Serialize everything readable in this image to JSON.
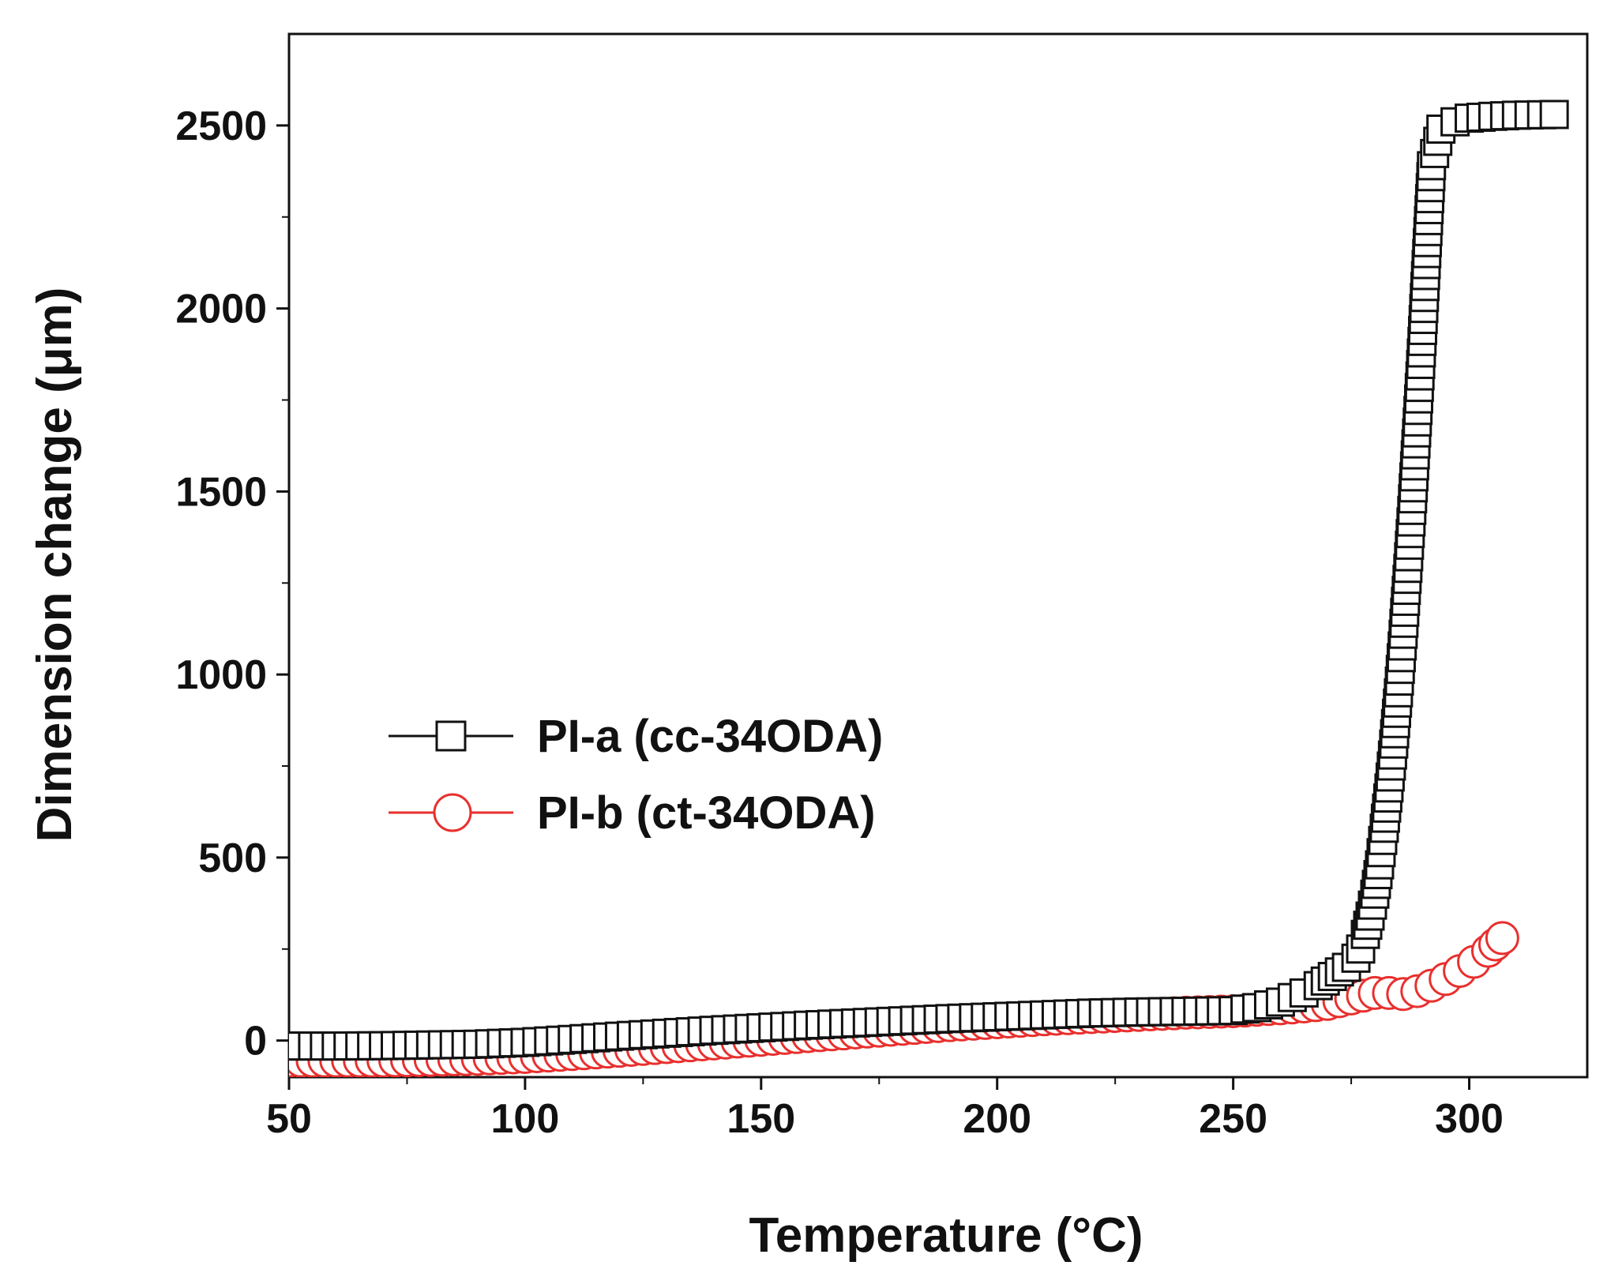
{
  "chart_data": {
    "type": "line",
    "title": "",
    "xlabel": "Temperature (°C)",
    "ylabel": "Dimension change (μm)",
    "xlim": [
      50,
      325
    ],
    "ylim": [
      -100,
      2750
    ],
    "xticks": [
      50,
      100,
      150,
      200,
      250,
      300
    ],
    "xtick_labels": [
      "50",
      "100",
      "150",
      "200",
      "250",
      "300"
    ],
    "yticks": [
      0,
      500,
      1000,
      1500,
      2000,
      2500
    ],
    "ytick_labels": [
      "0",
      "500",
      "1000",
      "1500",
      "2000",
      "2500"
    ],
    "grid": false,
    "legend": "center-left",
    "series": [
      {
        "name": "PI-a (cc-34ODA)",
        "color": "#111111",
        "marker": "square",
        "x": [
          50,
          60,
          70,
          80,
          90,
          100,
          110,
          120,
          130,
          140,
          150,
          160,
          170,
          180,
          190,
          200,
          210,
          220,
          230,
          240,
          250,
          255,
          260,
          265,
          268,
          271,
          274,
          276,
          277,
          278,
          279,
          280,
          281,
          282,
          283,
          284,
          285,
          286,
          287,
          288,
          289,
          290,
          291,
          292,
          294,
          297,
          300,
          305,
          310,
          318
        ],
        "y": [
          -15,
          -15,
          -14,
          -12,
          -10,
          -5,
          3,
          12,
          20,
          28,
          35,
          42,
          48,
          54,
          60,
          65,
          70,
          75,
          78,
          80,
          82,
          90,
          105,
          130,
          150,
          175,
          200,
          225,
          250,
          290,
          340,
          400,
          480,
          580,
          690,
          810,
          950,
          1110,
          1290,
          1480,
          1690,
          1910,
          2150,
          2390,
          2490,
          2510,
          2520,
          2525,
          2528,
          2530
        ]
      },
      {
        "name": "PI-b (ct-34ODA)",
        "color": "#e8302e",
        "marker": "circle",
        "x": [
          50,
          60,
          70,
          80,
          90,
          100,
          110,
          120,
          130,
          140,
          150,
          160,
          170,
          180,
          190,
          200,
          210,
          220,
          230,
          240,
          250,
          255,
          260,
          265,
          270,
          275,
          280,
          283,
          286,
          289,
          292,
          295,
          298,
          301,
          304,
          307
        ],
        "y": [
          -55,
          -55,
          -55,
          -53,
          -50,
          -45,
          -37,
          -28,
          -18,
          -8,
          2,
          12,
          22,
          32,
          42,
          50,
          58,
          64,
          70,
          76,
          80,
          84,
          88,
          93,
          100,
          115,
          130,
          130,
          127,
          135,
          150,
          168,
          190,
          215,
          245,
          280
        ]
      }
    ]
  }
}
